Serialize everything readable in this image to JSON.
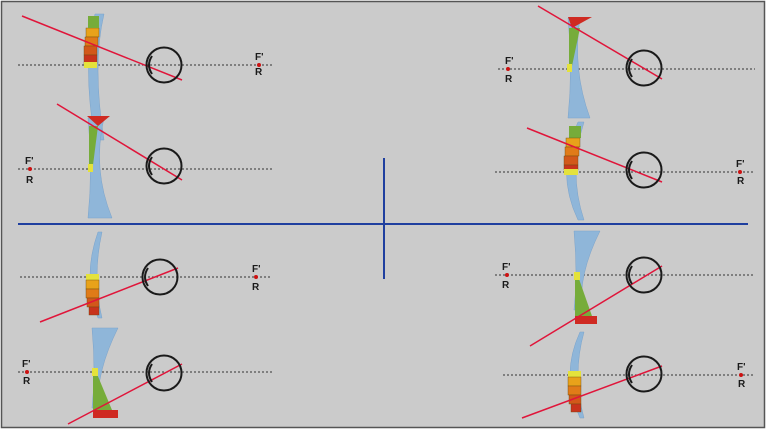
{
  "colors": {
    "background": "#cbcbcb",
    "border": "#555555",
    "divider": "#1f3f9f",
    "lens": "#8fb6d9",
    "lens_edge": "#7aa3cb",
    "ray": "#e0153a",
    "axis": "#333333",
    "eye": "#1a1a1a",
    "focus": "#cc1111",
    "bands": [
      "#e8a21a",
      "#e07b18",
      "#d2581a",
      "#c8331c"
    ],
    "green": "#76ac3a",
    "yellow": "#e4e23c",
    "red": "#cf2a22"
  },
  "labels": {
    "focal_point": "F'",
    "remote_point": "R"
  }
}
